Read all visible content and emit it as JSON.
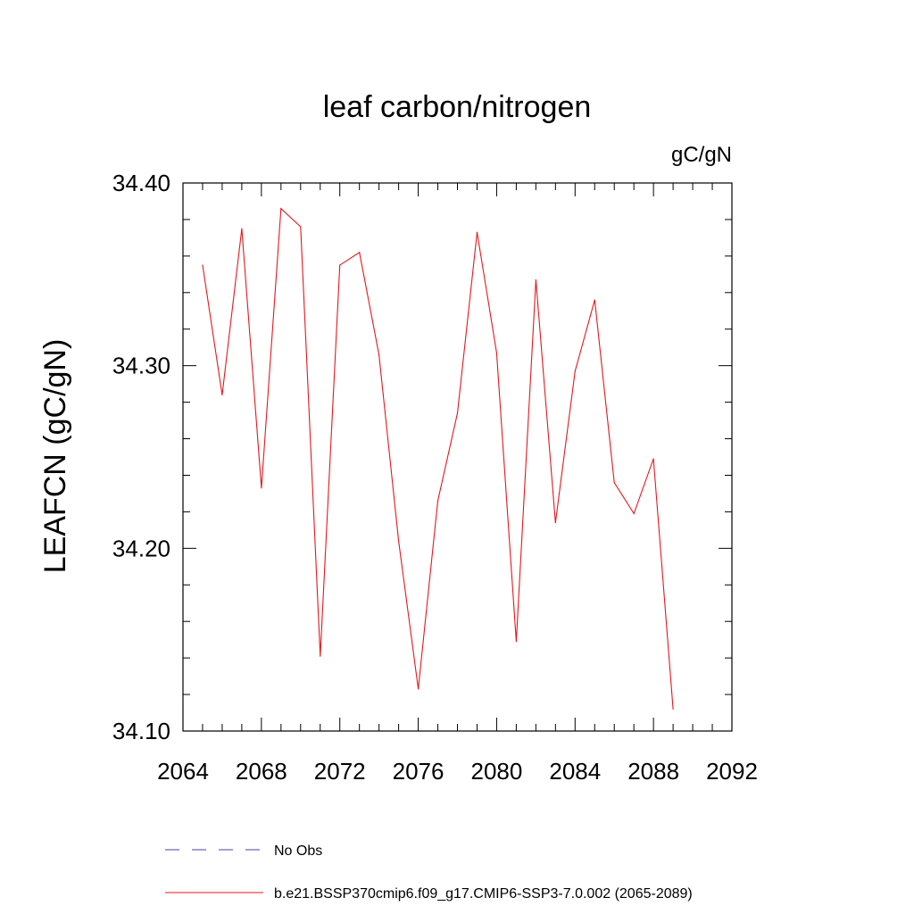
{
  "chart_data": {
    "type": "line",
    "title": "leaf carbon/nitrogen",
    "units": "gC/gN",
    "xlabel": "",
    "ylabel": "LEAFCN  (gC/gN)",
    "xlim": [
      2064,
      2092
    ],
    "ylim": [
      34.1,
      34.4
    ],
    "x_ticks": [
      2064,
      2068,
      2072,
      2076,
      2080,
      2084,
      2088,
      2092
    ],
    "x_tick_labels": [
      "2064",
      "2068",
      "2072",
      "2076",
      "2080",
      "2084",
      "2088",
      "2092"
    ],
    "x_minor_step": 1,
    "y_ticks": [
      34.1,
      34.2,
      34.3,
      34.4
    ],
    "y_tick_labels": [
      "34.10",
      "34.20",
      "34.30",
      "34.40"
    ],
    "y_minor_step": 0.02,
    "grid": false,
    "series": [
      {
        "name": "b.e21.BSSP370cmip6.f09_g17.CMIP6-SSP3-7.0.002 (2065-2089)",
        "color": "#e0191f",
        "x": [
          2065,
          2066,
          2067,
          2068,
          2069,
          2070,
          2071,
          2072,
          2073,
          2074,
          2075,
          2076,
          2077,
          2078,
          2079,
          2080,
          2081,
          2082,
          2083,
          2084,
          2085,
          2086,
          2087,
          2088,
          2089
        ],
        "values": [
          34.355,
          34.284,
          34.375,
          34.233,
          34.386,
          34.376,
          34.141,
          34.355,
          34.362,
          34.306,
          34.204,
          34.123,
          34.226,
          34.274,
          34.373,
          34.307,
          34.149,
          34.347,
          34.214,
          34.297,
          34.336,
          34.236,
          34.219,
          34.249,
          34.112
        ]
      }
    ],
    "legend": {
      "placement": "bottom",
      "entries": [
        {
          "label": "No Obs",
          "color": "#4a3fa8",
          "style": "dashed"
        },
        {
          "label": "b.e21.BSSP370cmip6.f09_g17.CMIP6-SSP3-7.0.002 (2065-2089)",
          "color": "#e0191f",
          "style": "solid"
        }
      ]
    }
  }
}
